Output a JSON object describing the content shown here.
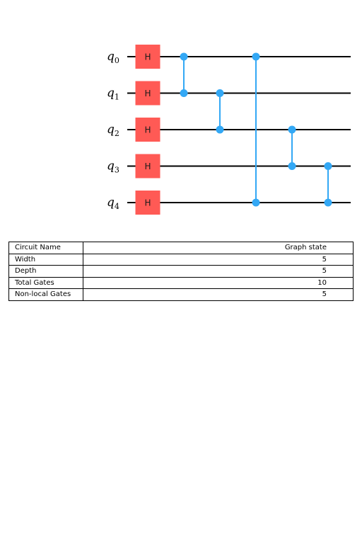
{
  "circuit": {
    "qubits": [
      {
        "label": "q",
        "index": "0"
      },
      {
        "label": "q",
        "index": "1"
      },
      {
        "label": "q",
        "index": "2"
      },
      {
        "label": "q",
        "index": "3"
      },
      {
        "label": "q",
        "index": "4"
      }
    ],
    "single_qubit_gates": [
      {
        "name": "H",
        "qubit": 0,
        "step": 0
      },
      {
        "name": "H",
        "qubit": 1,
        "step": 0
      },
      {
        "name": "H",
        "qubit": 2,
        "step": 0
      },
      {
        "name": "H",
        "qubit": 3,
        "step": 0
      },
      {
        "name": "H",
        "qubit": 4,
        "step": 0
      }
    ],
    "controlled_z_gates": [
      {
        "qubits": [
          0,
          1
        ],
        "step": 1
      },
      {
        "qubits": [
          1,
          2
        ],
        "step": 2
      },
      {
        "qubits": [
          0,
          4
        ],
        "step": 3
      },
      {
        "qubits": [
          2,
          3
        ],
        "step": 4
      },
      {
        "qubits": [
          3,
          4
        ],
        "step": 5
      }
    ],
    "colors": {
      "h_gate": "#ff5a55",
      "cz_gate": "#33a8f5",
      "wire": "#000000"
    }
  },
  "table": {
    "rows": [
      {
        "key": "Circuit Name",
        "value": "Graph state"
      },
      {
        "key": "Width",
        "value": "5"
      },
      {
        "key": "Depth",
        "value": "5"
      },
      {
        "key": "Total Gates",
        "value": "10"
      },
      {
        "key": "Non-local Gates",
        "value": "5"
      }
    ]
  }
}
